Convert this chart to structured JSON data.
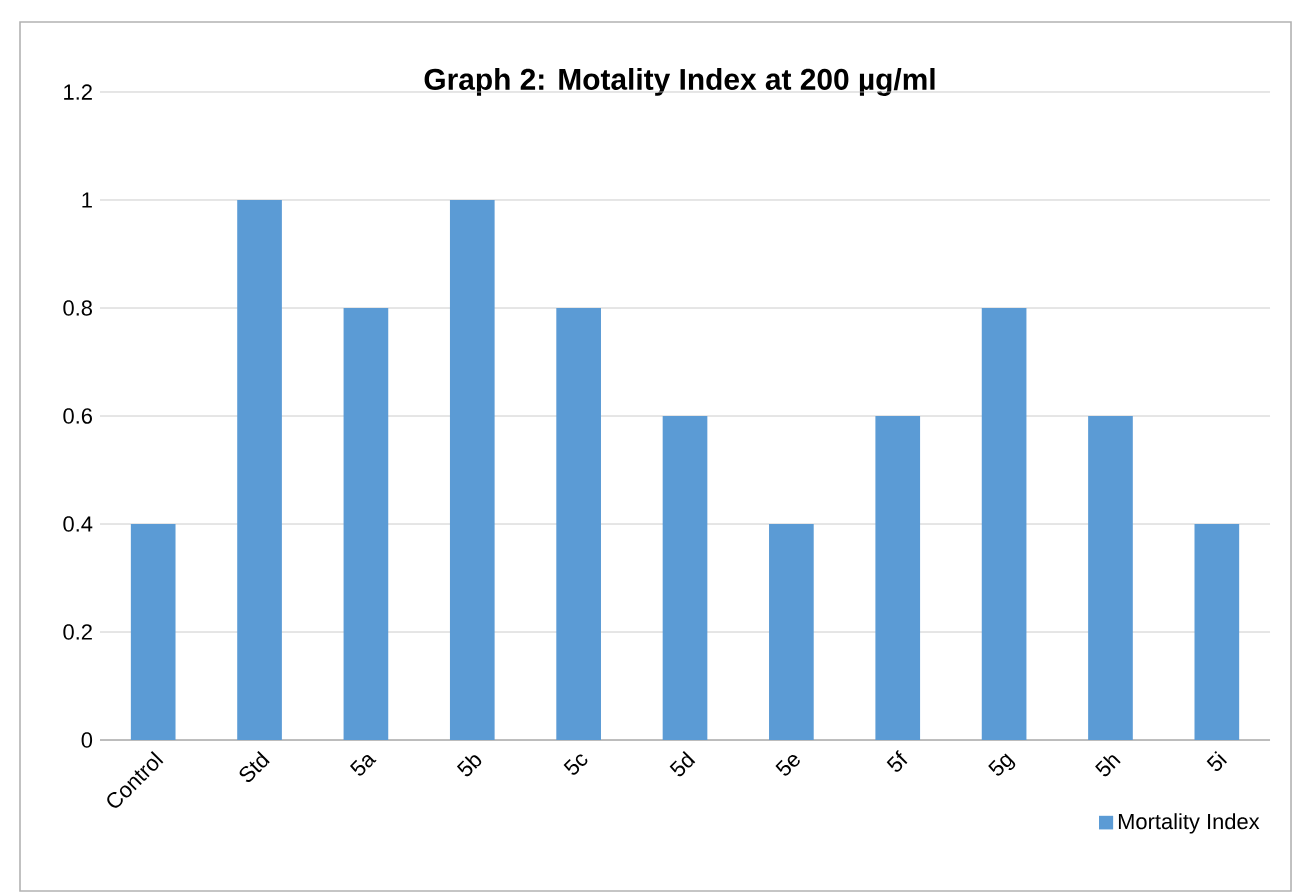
{
  "chart_data": {
    "type": "bar",
    "title": "Graph 2: Motality Index at 200 µg/ml",
    "categories": [
      "Control",
      "Std",
      "5a",
      "5b",
      "5c",
      "5d",
      "5e",
      "5f",
      "5g",
      "5h",
      "5i"
    ],
    "series": [
      {
        "name": "Mortality Index",
        "color": "#5b9bd5",
        "values": [
          0.4,
          1,
          0.8,
          1,
          0.8,
          0.6,
          0.4,
          0.6,
          0.8,
          0.6,
          0.4
        ]
      }
    ],
    "ylim": [
      0,
      1.2
    ],
    "yticks": [
      0,
      0.2,
      0.4,
      0.6,
      0.8,
      1,
      1.2
    ],
    "grid": "y",
    "legend": "bottom right"
  }
}
